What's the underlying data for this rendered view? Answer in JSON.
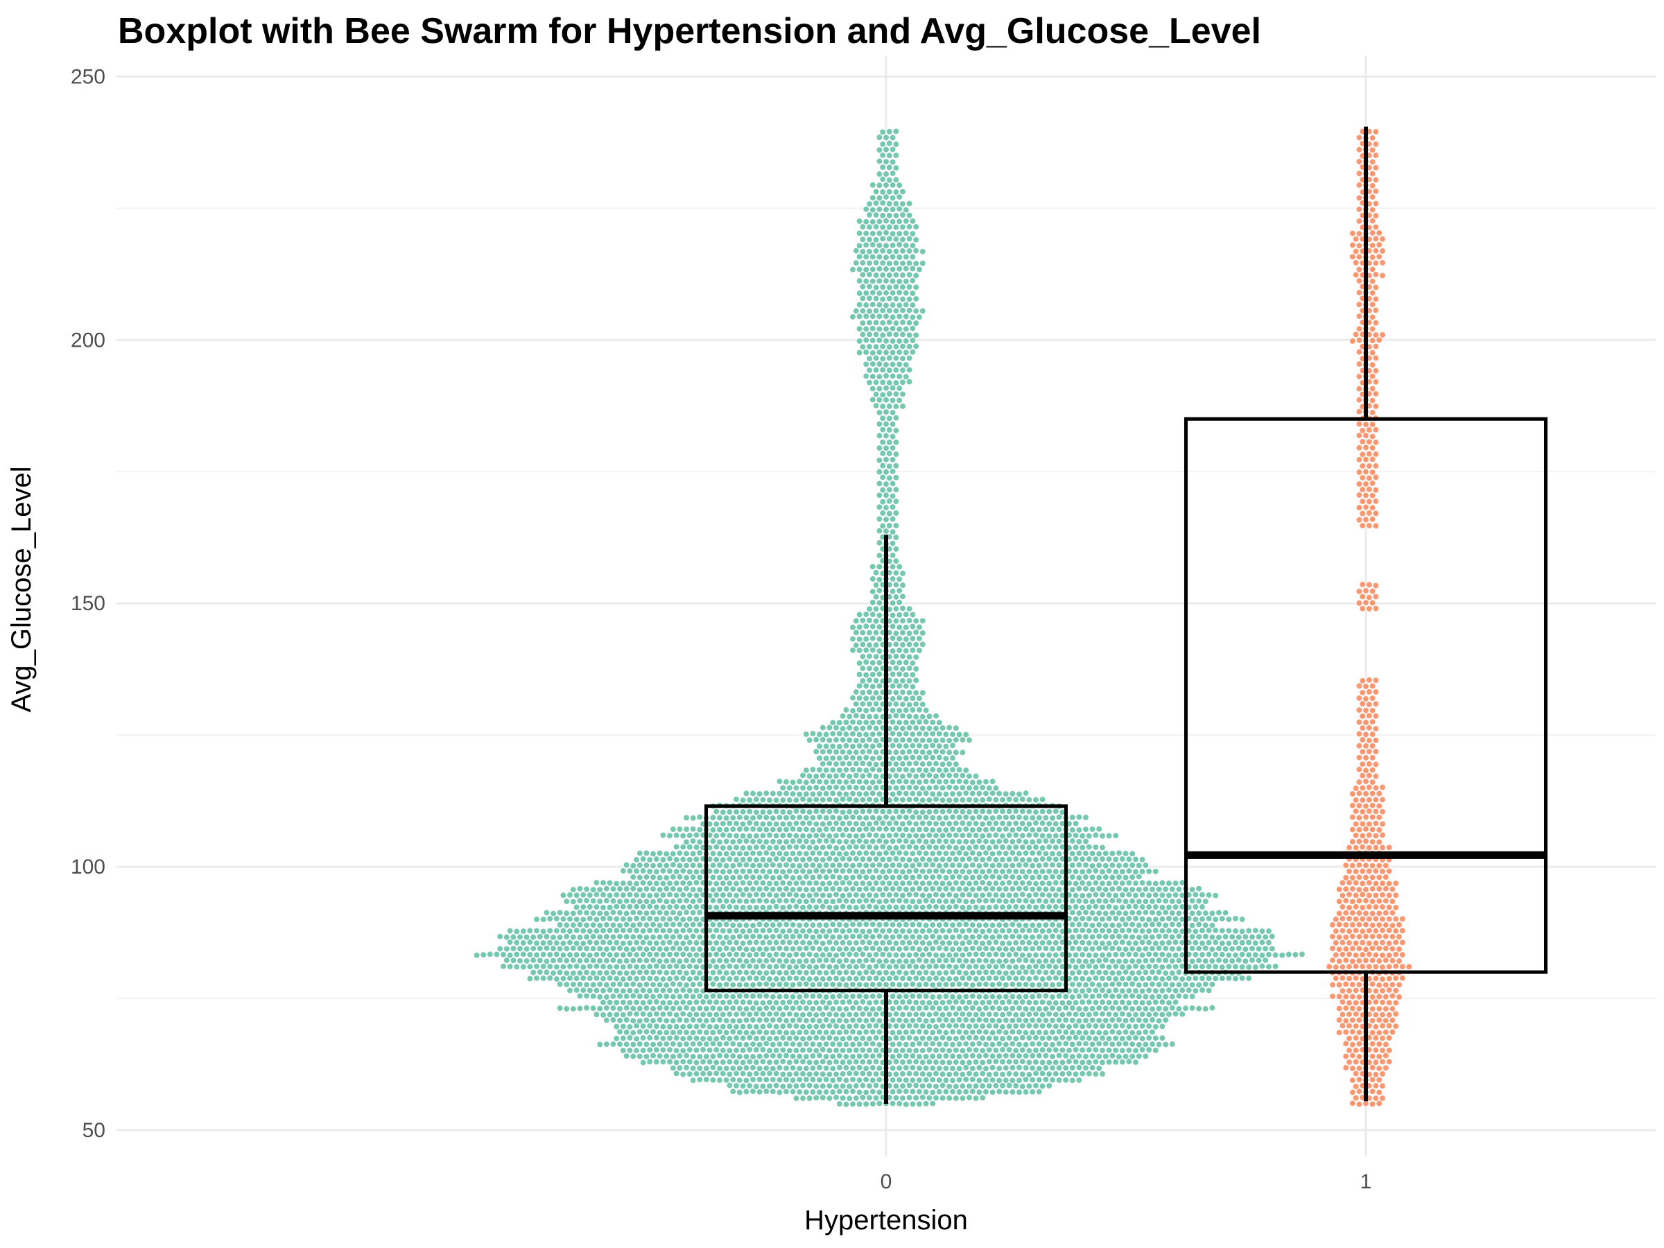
{
  "chart_data": {
    "type": "box",
    "overlay": "beeswarm",
    "title": "Boxplot with Bee Swarm for Hypertension and Avg_Glucose_Level",
    "xlabel": "Hypertension",
    "ylabel": "Avg_Glucose_Level",
    "categories": [
      "0",
      "1"
    ],
    "ylim": [
      45,
      254
    ],
    "yticks": [
      50,
      100,
      150,
      200,
      250
    ],
    "grid": true,
    "legend": "none",
    "colors": {
      "0": "#66c2a5",
      "1": "#fc8d62"
    },
    "boxes": [
      {
        "category": "0",
        "whisker_low": 55,
        "q1": 76.5,
        "median": 90.7,
        "q3": 111.5,
        "whisker_high": 163
      },
      {
        "category": "1",
        "whisker_low": 55.5,
        "q1": 80,
        "median": 102.2,
        "q3": 185,
        "whisker_high": 240.5
      }
    ],
    "swarm_width_profile": [
      {
        "category": "0",
        "width": [
          [
            55,
            0.1
          ],
          [
            57,
            0.3
          ],
          [
            60,
            0.42
          ],
          [
            63,
            0.5
          ],
          [
            66,
            0.58
          ],
          [
            70,
            0.62
          ],
          [
            73,
            0.64
          ],
          [
            76,
            0.66
          ],
          [
            79,
            0.74
          ],
          [
            82,
            0.85
          ],
          [
            85,
            0.78
          ],
          [
            88,
            0.74
          ],
          [
            91,
            0.7
          ],
          [
            94,
            0.66
          ],
          [
            98,
            0.58
          ],
          [
            102,
            0.52
          ],
          [
            105,
            0.46
          ],
          [
            109,
            0.42
          ],
          [
            112,
            0.36
          ],
          [
            115,
            0.24
          ],
          [
            118,
            0.18
          ],
          [
            121,
            0.14
          ],
          [
            125,
            0.17
          ],
          [
            128,
            0.1
          ],
          [
            131,
            0.08
          ],
          [
            135,
            0.06
          ],
          [
            140,
            0.07
          ],
          [
            145,
            0.08
          ],
          [
            150,
            0.04
          ],
          [
            155,
            0.03
          ],
          [
            160,
            0.025
          ],
          [
            165,
            0.02
          ],
          [
            170,
            0.02
          ],
          [
            175,
            0.01
          ],
          [
            180,
            0.015
          ],
          [
            185,
            0.02
          ],
          [
            190,
            0.04
          ],
          [
            195,
            0.05
          ],
          [
            200,
            0.06
          ],
          [
            205,
            0.07
          ],
          [
            210,
            0.06
          ],
          [
            215,
            0.07
          ],
          [
            220,
            0.06
          ],
          [
            225,
            0.05
          ],
          [
            230,
            0.03
          ],
          [
            235,
            0.02
          ],
          [
            240,
            0.012
          ]
        ]
      },
      {
        "category": "1",
        "width": [
          [
            55,
            0.03
          ],
          [
            60,
            0.04
          ],
          [
            65,
            0.05
          ],
          [
            70,
            0.06
          ],
          [
            75,
            0.07
          ],
          [
            80,
            0.08
          ],
          [
            85,
            0.08
          ],
          [
            90,
            0.07
          ],
          [
            95,
            0.06
          ],
          [
            100,
            0.05
          ],
          [
            105,
            0.04
          ],
          [
            110,
            0.035
          ],
          [
            115,
            0.03
          ],
          [
            120,
            0.015
          ],
          [
            125,
            0.01
          ],
          [
            130,
            0.006
          ],
          [
            135,
            0.005
          ],
          [
            140,
            0
          ],
          [
            145,
            0
          ],
          [
            150,
            0.006
          ],
          [
            155,
            0.004
          ],
          [
            160,
            0
          ],
          [
            165,
            0.006
          ],
          [
            170,
            0.01
          ],
          [
            175,
            0.015
          ],
          [
            180,
            0.02
          ],
          [
            185,
            0.015
          ],
          [
            190,
            0.015
          ],
          [
            195,
            0.02
          ],
          [
            200,
            0.03
          ],
          [
            205,
            0.02
          ],
          [
            210,
            0.025
          ],
          [
            215,
            0.03
          ],
          [
            220,
            0.03
          ],
          [
            225,
            0.02
          ],
          [
            230,
            0.015
          ],
          [
            235,
            0.01
          ],
          [
            240,
            0.005
          ]
        ]
      }
    ]
  }
}
